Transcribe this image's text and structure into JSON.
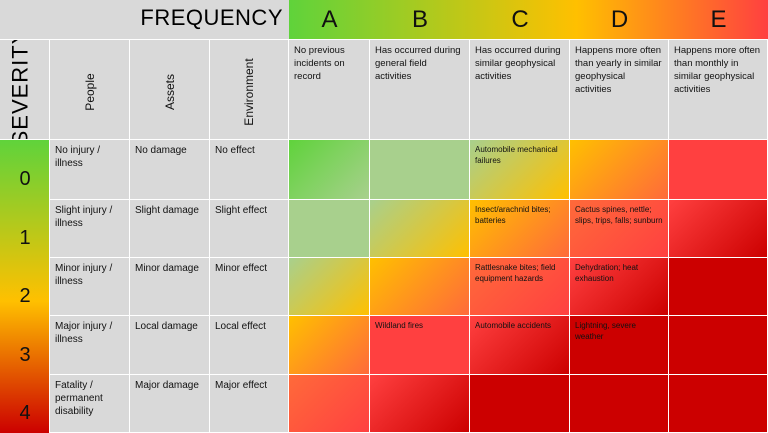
{
  "frequency_title": "FREQUENCY",
  "severity_title": "SEVERITY",
  "frequency_levels": [
    {
      "letter": "A",
      "description": "No previous incidents on record"
    },
    {
      "letter": "B",
      "description": "Has occurred during general field activities"
    },
    {
      "letter": "C",
      "description": "Has occurred during similar geophysical activities"
    },
    {
      "letter": "D",
      "description": "Happens more often than yearly in similar geophysical activities"
    },
    {
      "letter": "E",
      "description": "Happens more often than monthly in similar geophysical activities"
    }
  ],
  "consequence_headers": [
    "People",
    "Assets",
    "Environment"
  ],
  "severity_levels": [
    {
      "level": "0",
      "people": "No injury / illness",
      "assets": "No damage",
      "environment": "No effect"
    },
    {
      "level": "1",
      "people": "Slight injury / illness",
      "assets": "Slight damage",
      "environment": "Slight effect"
    },
    {
      "level": "2",
      "people": "Minor injury / illness",
      "assets": "Minor damage",
      "environment": "Minor effect"
    },
    {
      "level": "3",
      "people": "Major injury / illness",
      "assets": "Local damage",
      "environment": "Local effect"
    },
    {
      "level": "4",
      "people": "Fatality / permanent disability",
      "assets": "Major damage",
      "environment": "Major effect"
    }
  ],
  "hazards": {
    "r0c2": "Automobile mechanical failures",
    "r1c2": "Insect/arachnid bites; batteries",
    "r1c3": "Cactus spines, nettle; slips, trips, falls; sunburn",
    "r2c2": "Rattlesnake bites; field equipment hazards",
    "r2c3": "Dehydration; heat exhaustion",
    "r3c1": "Wildland fires",
    "r3c2": "Automobile accidents",
    "r3c3": "Lightning, severe weather"
  },
  "colors": {
    "green": "#5fd33b",
    "light_green": "#a8d08d",
    "yellow": "#ffc000",
    "orange": "#ff6a3a",
    "red": "#ff4040",
    "dark_red": "#cc0000",
    "gray": "#d9d9d9"
  }
}
